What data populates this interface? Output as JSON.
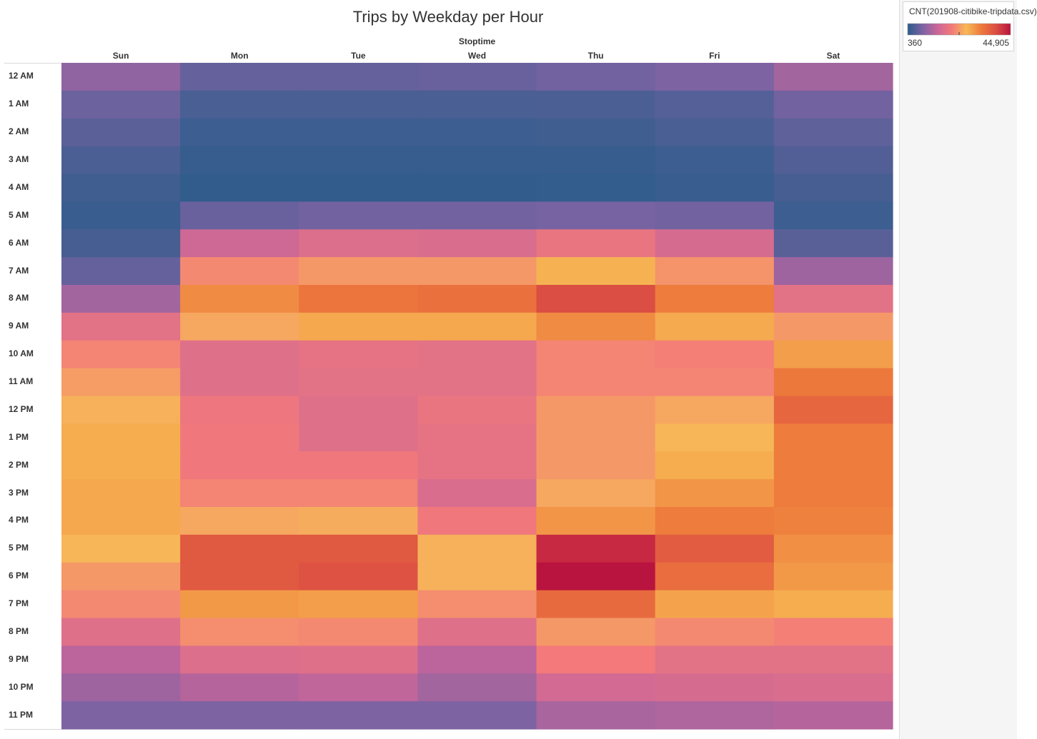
{
  "chart_data": {
    "type": "heatmap",
    "title": "Trips by Weekday per Hour",
    "column_header": "Stoptime",
    "columns": [
      "Sun",
      "Mon",
      "Tue",
      "Wed",
      "Thu",
      "Fri",
      "Sat"
    ],
    "rows": [
      "12 AM",
      "1 AM",
      "2 AM",
      "3 AM",
      "4 AM",
      "5 AM",
      "6 AM",
      "7 AM",
      "8 AM",
      "9 AM",
      "10 AM",
      "11 AM",
      "12 PM",
      "1 PM",
      "2 PM",
      "3 PM",
      "4 PM",
      "5 PM",
      "6 PM",
      "7 PM",
      "8 PM",
      "9 PM",
      "10 PM",
      "11 PM"
    ],
    "values": [
      [
        8500,
        5000,
        5000,
        5200,
        6000,
        7000,
        10000
      ],
      [
        5500,
        2800,
        2800,
        2800,
        3000,
        3800,
        6000
      ],
      [
        4200,
        1800,
        1800,
        1800,
        2000,
        2800,
        4500
      ],
      [
        3000,
        1200,
        1200,
        1200,
        1300,
        1800,
        3500
      ],
      [
        2000,
        800,
        800,
        800,
        900,
        1400,
        2500
      ],
      [
        1500,
        5200,
        6000,
        6000,
        6500,
        6000,
        1800
      ],
      [
        2500,
        14000,
        16000,
        15500,
        18000,
        15000,
        4000
      ],
      [
        5000,
        21000,
        22500,
        22500,
        26500,
        22000,
        9500
      ],
      [
        10000,
        30500,
        33000,
        33500,
        38500,
        32000,
        17000
      ],
      [
        17000,
        24000,
        27500,
        27500,
        30500,
        27300,
        22500
      ],
      [
        20500,
        16500,
        17500,
        17000,
        20500,
        20000,
        28500
      ],
      [
        23000,
        16500,
        17000,
        17000,
        20500,
        20500,
        32500
      ],
      [
        25000,
        18500,
        16500,
        18000,
        22500,
        24000,
        35000
      ],
      [
        27000,
        19000,
        16500,
        17500,
        22500,
        25500,
        32000
      ],
      [
        27000,
        19000,
        19000,
        17500,
        22500,
        27000,
        32000
      ],
      [
        27500,
        20500,
        20500,
        15500,
        24000,
        29500,
        32000
      ],
      [
        27500,
        24000,
        24500,
        19000,
        29500,
        32000,
        31500
      ],
      [
        25500,
        37000,
        37000,
        25000,
        42500,
        36500,
        30000
      ],
      [
        22500,
        37000,
        38000,
        25000,
        44905,
        34000,
        29000
      ],
      [
        21000,
        29000,
        28500,
        21500,
        34500,
        28000,
        27000
      ],
      [
        16500,
        21500,
        21000,
        16500,
        22500,
        21000,
        20000
      ],
      [
        12000,
        16000,
        16500,
        12000,
        19500,
        17000,
        17000
      ],
      [
        9500,
        11500,
        12500,
        10000,
        14500,
        15000,
        15500
      ],
      [
        7000,
        7000,
        7000,
        7000,
        10500,
        11000,
        11500
      ]
    ],
    "color_range": [
      360,
      44905
    ],
    "color_stops": [
      "#2b5c8a",
      "#7b63a3",
      "#c8669a",
      "#f3797a",
      "#f7b955",
      "#ee7a3c",
      "#db4e43",
      "#b9133f"
    ],
    "legend": {
      "title": "CNT(201908-citibike-tripdata.csv)",
      "min_label": "360",
      "max_label": "44,905",
      "position": "top-right"
    }
  }
}
